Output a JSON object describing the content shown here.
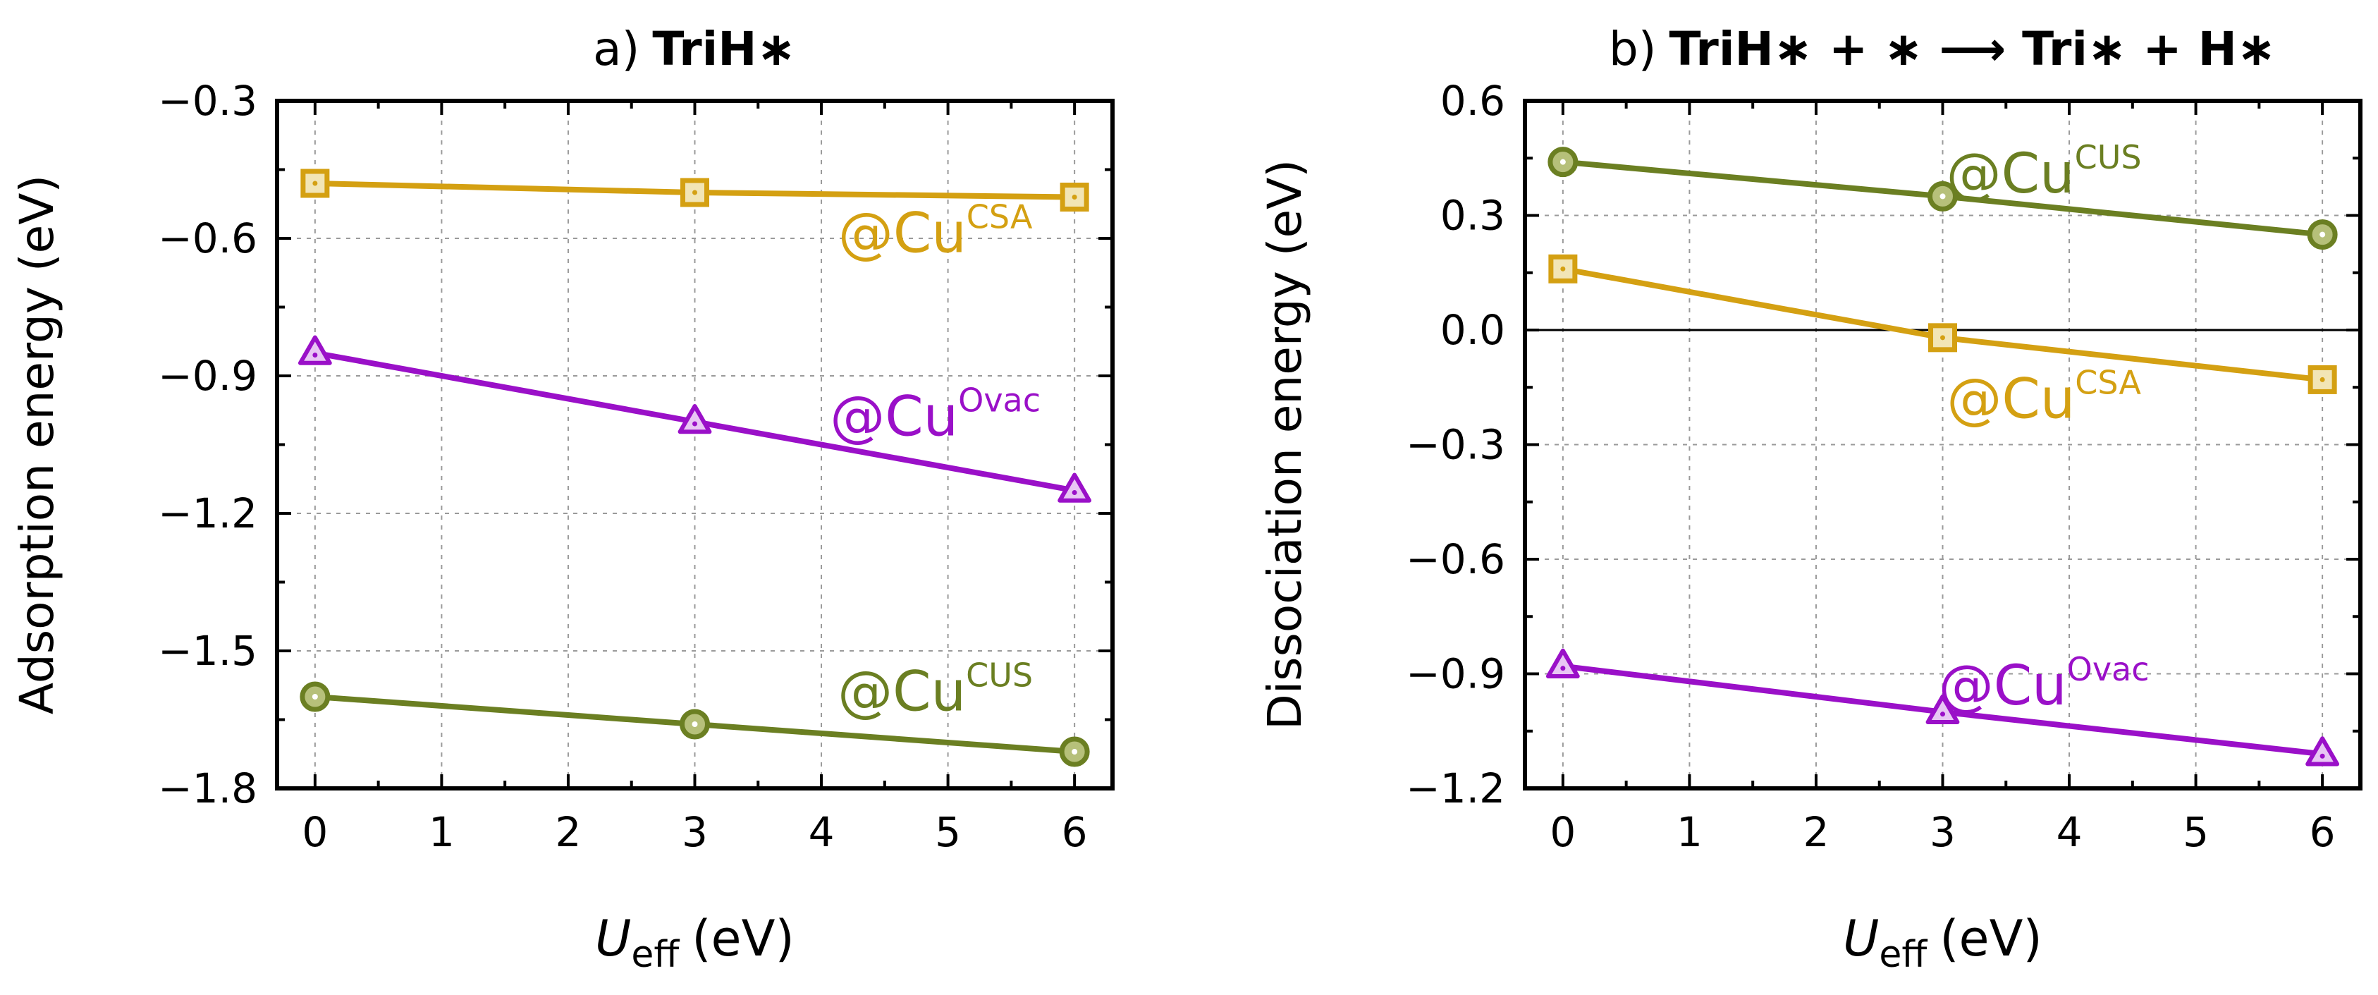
{
  "chart_data": [
    {
      "type": "line",
      "panel_label": "a)",
      "title": "TriH∗",
      "xlabel_main": "U",
      "xlabel_sub": "eff",
      "xlabel_unit": "(eV)",
      "ylabel": "Adsorption energy (eV)",
      "xlim": [
        -0.3,
        6.3
      ],
      "ylim": [
        -1.8,
        -0.3
      ],
      "xticks": [
        0,
        1,
        2,
        3,
        4,
        5,
        6
      ],
      "yticks": [
        -1.8,
        -1.5,
        -1.2,
        -0.9,
        -0.6,
        -0.3
      ],
      "ytick_labels": [
        "−1.8",
        "−1.5",
        "−1.2",
        "−0.9",
        "−0.6",
        "−0.3"
      ],
      "zero_line": false,
      "grid": true,
      "series": [
        {
          "name": "@Cu",
          "sup": "CSA",
          "color": "#d4a012",
          "marker": "square",
          "x": [
            0,
            3,
            6
          ],
          "y": [
            -0.48,
            -0.5,
            -0.51
          ],
          "label_pos": [
            4.9,
            -0.63
          ]
        },
        {
          "name": "@Cu",
          "sup": "Ovac",
          "color": "#9a10c8",
          "marker": "triangle",
          "x": [
            0,
            3,
            6
          ],
          "y": [
            -0.85,
            -1.0,
            -1.15
          ],
          "label_pos": [
            4.9,
            -1.03
          ]
        },
        {
          "name": "@Cu",
          "sup": "CUS",
          "color": "#6b7f22",
          "marker": "circle",
          "x": [
            0,
            3,
            6
          ],
          "y": [
            -1.6,
            -1.66,
            -1.72
          ],
          "label_pos": [
            4.9,
            -1.63
          ]
        }
      ]
    },
    {
      "type": "line",
      "panel_label": "b)",
      "title": "TriH∗ + ∗ ⟶ Tri∗ + H∗",
      "xlabel_main": "U",
      "xlabel_sub": "eff",
      "xlabel_unit": "(eV)",
      "ylabel": "Dissociation energy (eV)",
      "xlim": [
        -0.3,
        6.3
      ],
      "ylim": [
        -1.2,
        0.6
      ],
      "xticks": [
        0,
        1,
        2,
        3,
        4,
        5,
        6
      ],
      "yticks": [
        -1.2,
        -0.9,
        -0.6,
        -0.3,
        0.0,
        0.3,
        0.6
      ],
      "ytick_labels": [
        "−1.2",
        "−0.9",
        "−0.6",
        "−0.3",
        "0.0",
        "0.3",
        "0.6"
      ],
      "zero_line": true,
      "grid": true,
      "series": [
        {
          "name": "@Cu",
          "sup": "CUS",
          "color": "#6b7f22",
          "marker": "circle",
          "x": [
            0,
            3,
            6
          ],
          "y": [
            0.44,
            0.35,
            0.25
          ],
          "label_pos": [
            3.8,
            0.36
          ]
        },
        {
          "name": "@Cu",
          "sup": "CSA",
          "color": "#d4a012",
          "marker": "square",
          "x": [
            0,
            3,
            6
          ],
          "y": [
            0.16,
            -0.02,
            -0.13
          ],
          "label_pos": [
            3.8,
            -0.23
          ]
        },
        {
          "name": "@Cu",
          "sup": "Ovac",
          "color": "#9a10c8",
          "marker": "triangle",
          "x": [
            0,
            3,
            6
          ],
          "y": [
            -0.88,
            -1.0,
            -1.11
          ],
          "label_pos": [
            3.8,
            -0.98
          ]
        }
      ]
    }
  ]
}
